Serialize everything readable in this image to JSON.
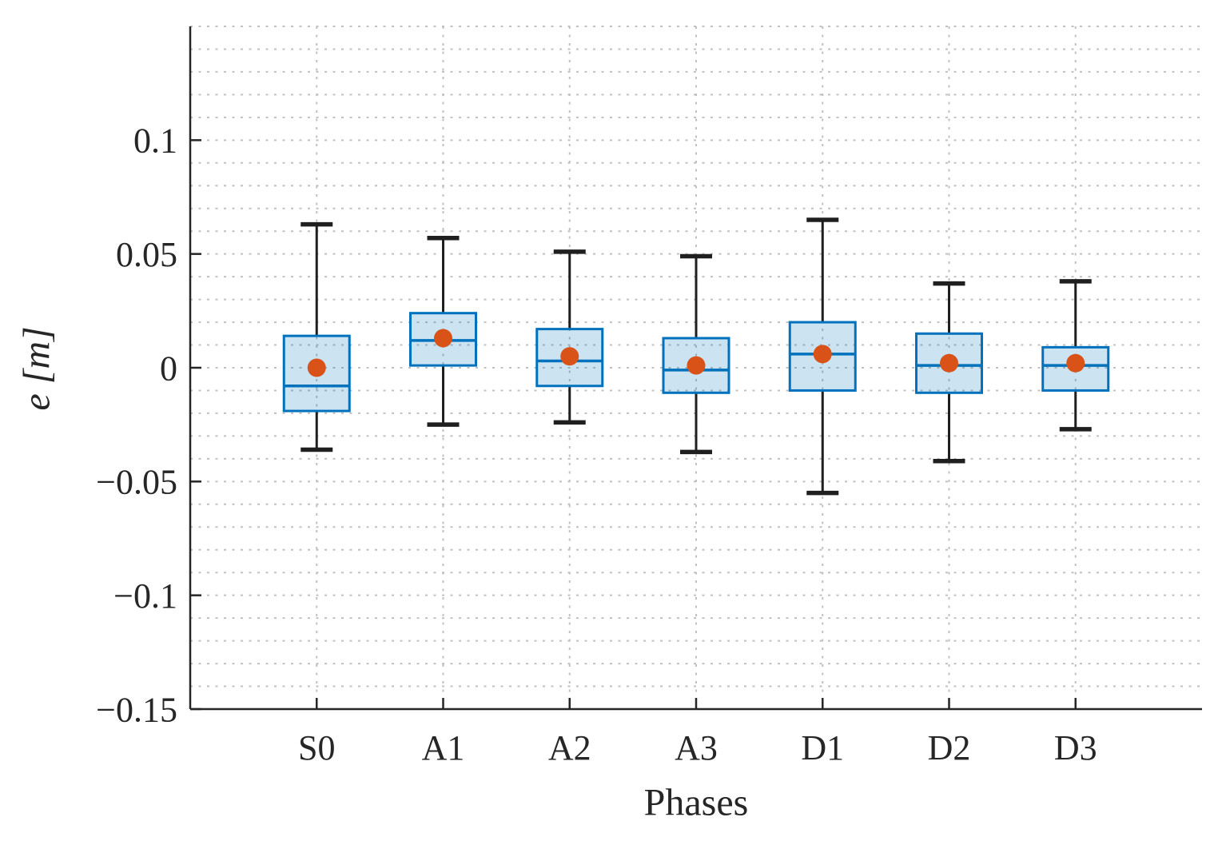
{
  "chart_data": {
    "type": "boxplot",
    "xlabel": "Phases",
    "ylabel": "e [m]",
    "categories": [
      "S0",
      "A1",
      "A2",
      "A3",
      "D1",
      "D2",
      "D3"
    ],
    "ylim": [
      -0.15,
      0.15
    ],
    "yticks": {
      "values": [
        0.1,
        0.05,
        0,
        -0.05,
        -0.1,
        -0.15
      ],
      "labels": [
        "0.1",
        "0.05",
        "0",
        "−0.05",
        "−0.1",
        "−0.15"
      ]
    },
    "grid": {
      "style": "dotted",
      "horizontal_minor_step": 0.01,
      "vertical_at_categories": true,
      "top_border": false,
      "right_border": false
    },
    "series": [
      {
        "category": "S0",
        "whisker_low": -0.036,
        "q1": -0.019,
        "median": -0.008,
        "q3": 0.014,
        "whisker_high": 0.063,
        "mean": 0.0
      },
      {
        "category": "A1",
        "whisker_low": -0.025,
        "q1": 0.001,
        "median": 0.012,
        "q3": 0.024,
        "whisker_high": 0.057,
        "mean": 0.013
      },
      {
        "category": "A2",
        "whisker_low": -0.024,
        "q1": -0.008,
        "median": 0.003,
        "q3": 0.017,
        "whisker_high": 0.051,
        "mean": 0.005
      },
      {
        "category": "A3",
        "whisker_low": -0.037,
        "q1": -0.011,
        "median": -0.001,
        "q3": 0.013,
        "whisker_high": 0.049,
        "mean": 0.001
      },
      {
        "category": "D1",
        "whisker_low": -0.055,
        "q1": -0.01,
        "median": 0.006,
        "q3": 0.02,
        "whisker_high": 0.065,
        "mean": 0.006
      },
      {
        "category": "D2",
        "whisker_low": -0.041,
        "q1": -0.011,
        "median": 0.001,
        "q3": 0.015,
        "whisker_high": 0.037,
        "mean": 0.002
      },
      {
        "category": "D3",
        "whisker_low": -0.027,
        "q1": -0.01,
        "median": 0.001,
        "q3": 0.009,
        "whisker_high": 0.038,
        "mean": 0.002
      }
    ],
    "colors": {
      "box_edge": "#0072BD",
      "box_fill": "#0072BD",
      "box_fill_opacity": 0.2,
      "median_line": "#0072BD",
      "whisker": "#1f1f1f",
      "mean_marker": "#D95319",
      "grid": "#c0c0c0",
      "axis": "#262626",
      "tick_text": "#262626"
    }
  }
}
